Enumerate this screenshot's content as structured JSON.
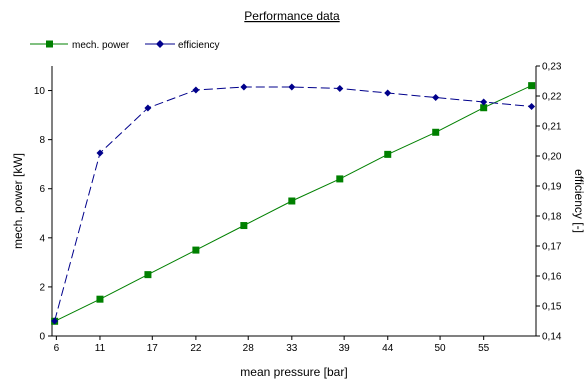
{
  "chart_data": {
    "type": "line",
    "title": "Performance data",
    "xlabel": "mean pressure [bar]",
    "ylabel_left": "mech. power [kW]",
    "ylabel_right": "efficiency [-]",
    "x_ticks": [
      "6",
      "11",
      "17",
      "22",
      "28",
      "33",
      "39",
      "44",
      "50",
      "55"
    ],
    "x_tick_values": [
      6,
      11,
      17,
      22,
      28,
      33,
      39,
      44,
      50,
      55
    ],
    "xlim": [
      5.5,
      61
    ],
    "ylim_left": [
      0,
      11
    ],
    "ylim_right": [
      0.14,
      0.23
    ],
    "y_left_ticks": [
      "0",
      "2",
      "4",
      "6",
      "8",
      "10"
    ],
    "y_left_tick_values": [
      0,
      2,
      4,
      6,
      8,
      10
    ],
    "y_right_ticks": [
      "0,14",
      "0,15",
      "0,16",
      "0,17",
      "0,18",
      "0,19",
      "0,20",
      "0,21",
      "0,22",
      "0,23"
    ],
    "y_right_tick_values": [
      0.14,
      0.15,
      0.16,
      0.17,
      0.18,
      0.19,
      0.2,
      0.21,
      0.22,
      0.23
    ],
    "grid": false,
    "legend_position": "top-left",
    "series": [
      {
        "name": "mech. power",
        "axis": "left",
        "color": "#008000",
        "marker": "square",
        "line_style": "solid",
        "x": [
          5.8,
          11,
          16.5,
          22,
          27.5,
          33,
          38.5,
          44,
          49.5,
          55,
          60.5
        ],
        "y": [
          0.6,
          1.5,
          2.5,
          3.5,
          4.5,
          5.5,
          6.4,
          7.4,
          8.3,
          9.3,
          10.2
        ]
      },
      {
        "name": "efficiency",
        "axis": "right",
        "color": "#00008B",
        "marker": "diamond",
        "line_style": "dashed",
        "x": [
          5.8,
          11,
          16.5,
          22,
          27.5,
          33,
          38.5,
          44,
          49.5,
          55,
          60.5
        ],
        "y": [
          0.145,
          0.201,
          0.216,
          0.222,
          0.223,
          0.223,
          0.2225,
          0.221,
          0.2195,
          0.218,
          0.2165
        ]
      }
    ]
  }
}
